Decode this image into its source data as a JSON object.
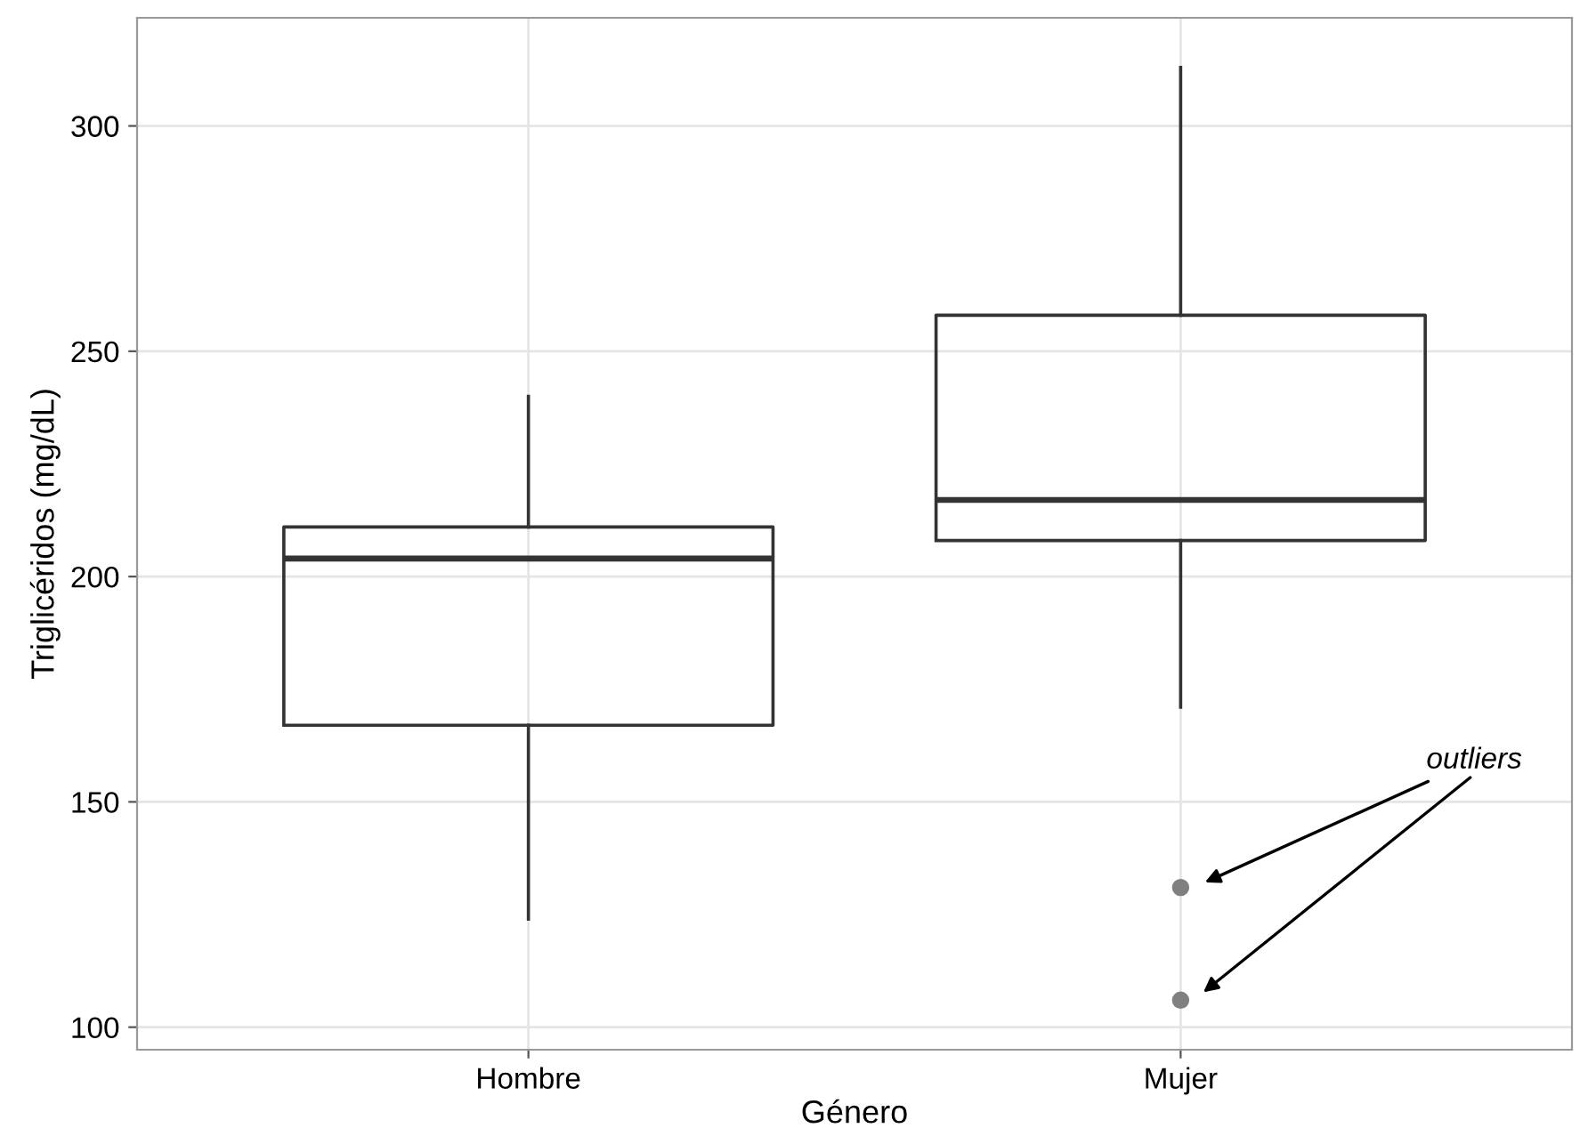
{
  "chart_data": {
    "type": "box",
    "xlabel": "Género",
    "ylabel": "Triglicéridos (mg/dL)",
    "categories": [
      "Hombre",
      "Mujer"
    ],
    "boxes": [
      {
        "low": 124,
        "q1": 167,
        "median": 204,
        "q3": 211,
        "high": 240
      },
      {
        "low": 171,
        "q1": 208,
        "median": 217,
        "q3": 258,
        "high": 313,
        "outliers": [
          131,
          106
        ]
      }
    ],
    "ylim": [
      95,
      324
    ],
    "yticks": [
      100,
      150,
      200,
      250,
      300
    ],
    "grid": true,
    "annotations": [
      "outliers"
    ]
  }
}
